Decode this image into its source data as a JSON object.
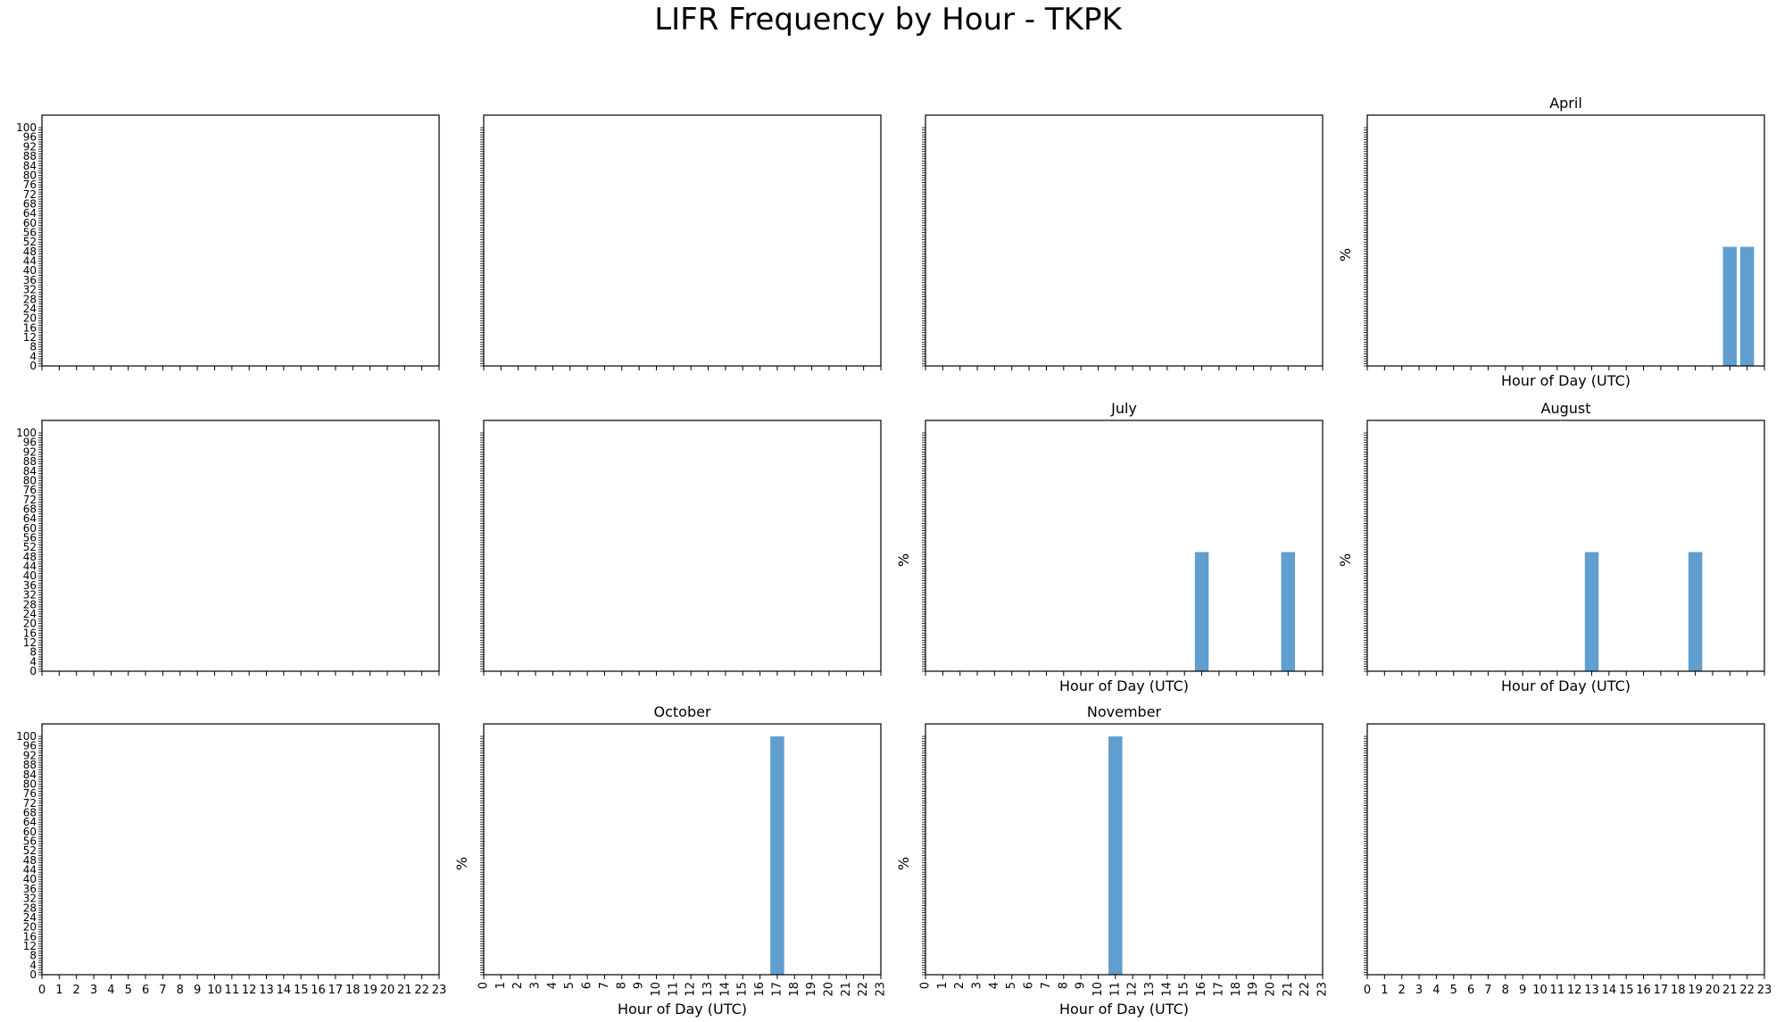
{
  "figure": {
    "title": "LIFR Frequency by Hour - TKPK"
  },
  "style": {
    "bar_color": "#5f9ecf",
    "axis_color": "#000000"
  },
  "chart_data": [
    {
      "type": "bar",
      "title": "",
      "xlabel": "",
      "ylabel": "",
      "categories": [],
      "values": [],
      "ylim": [
        0,
        100
      ],
      "xlim": [
        0,
        23
      ],
      "show_x_labels": false,
      "show_y_labels": true,
      "y_labels_overlap": true
    },
    {
      "type": "bar",
      "title": "",
      "xlabel": "",
      "ylabel": "",
      "categories": [],
      "values": [],
      "ylim": [
        0,
        100
      ],
      "xlim": [
        0,
        23
      ],
      "show_x_labels": false,
      "show_y_labels": false
    },
    {
      "type": "bar",
      "title": "",
      "xlabel": "",
      "ylabel": "",
      "categories": [],
      "values": [],
      "ylim": [
        0,
        100
      ],
      "xlim": [
        0,
        23
      ],
      "show_x_labels": false,
      "show_y_labels": false
    },
    {
      "type": "bar",
      "title": "April",
      "xlabel": "Hour of Day (UTC)",
      "ylabel": "%",
      "categories": [
        21,
        22
      ],
      "values": [
        50,
        50
      ],
      "ylim": [
        0,
        100
      ],
      "xlim": [
        0,
        23
      ],
      "show_x_labels": false,
      "show_y_labels": false
    },
    {
      "type": "bar",
      "title": "",
      "xlabel": "",
      "ylabel": "",
      "categories": [],
      "values": [],
      "ylim": [
        0,
        100
      ],
      "xlim": [
        0,
        23
      ],
      "show_x_labels": false,
      "show_y_labels": true,
      "y_labels_overlap": true
    },
    {
      "type": "bar",
      "title": "",
      "xlabel": "",
      "ylabel": "",
      "categories": [],
      "values": [],
      "ylim": [
        0,
        100
      ],
      "xlim": [
        0,
        23
      ],
      "show_x_labels": false,
      "show_y_labels": false
    },
    {
      "type": "bar",
      "title": "July",
      "xlabel": "Hour of Day (UTC)",
      "ylabel": "%",
      "categories": [
        16,
        21
      ],
      "values": [
        50,
        50
      ],
      "ylim": [
        0,
        100
      ],
      "xlim": [
        0,
        23
      ],
      "show_x_labels": false,
      "show_y_labels": false
    },
    {
      "type": "bar",
      "title": "August",
      "xlabel": "Hour of Day (UTC)",
      "ylabel": "%",
      "categories": [
        13,
        19
      ],
      "values": [
        50,
        50
      ],
      "ylim": [
        0,
        100
      ],
      "xlim": [
        0,
        23
      ],
      "show_x_labels": false,
      "show_y_labels": false
    },
    {
      "type": "bar",
      "title": "",
      "xlabel": "",
      "ylabel": "",
      "categories": [],
      "values": [],
      "ylim": [
        0,
        100
      ],
      "xlim": [
        0,
        23
      ],
      "show_x_labels": true,
      "x_label_rotation": 0,
      "show_y_labels": true,
      "y_labels_overlap": true
    },
    {
      "type": "bar",
      "title": "October",
      "xlabel": "Hour of Day (UTC)",
      "ylabel": "%",
      "categories": [
        17
      ],
      "values": [
        100
      ],
      "ylim": [
        0,
        100
      ],
      "xlim": [
        0,
        23
      ],
      "show_x_labels": true,
      "x_label_rotation": -90,
      "show_y_labels": false
    },
    {
      "type": "bar",
      "title": "November",
      "xlabel": "Hour of Day (UTC)",
      "ylabel": "%",
      "categories": [
        11
      ],
      "values": [
        100
      ],
      "ylim": [
        0,
        100
      ],
      "xlim": [
        0,
        23
      ],
      "show_x_labels": true,
      "x_label_rotation": -90,
      "show_y_labels": false
    },
    {
      "type": "bar",
      "title": "",
      "xlabel": "",
      "ylabel": "",
      "categories": [],
      "values": [],
      "ylim": [
        0,
        100
      ],
      "xlim": [
        0,
        23
      ],
      "show_x_labels": true,
      "x_label_rotation": 0,
      "show_y_labels": false
    }
  ]
}
